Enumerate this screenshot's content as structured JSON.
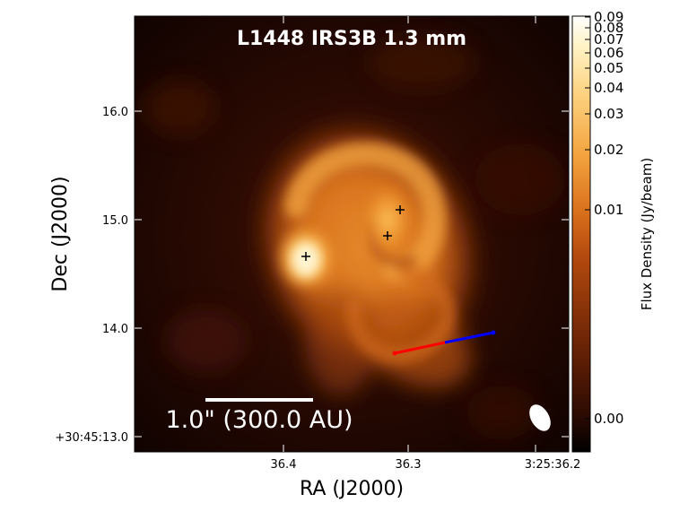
{
  "title": "L1448 IRS3B 1.3 mm",
  "xlabel": "RA (J2000)",
  "ylabel": "Dec (J2000)",
  "x_ticks": [
    "36.4",
    "36.3",
    "3:25:36.2"
  ],
  "y_ticks": [
    "+30:45:13.0",
    "14.0",
    "15.0",
    "16.0"
  ],
  "colorbar": {
    "label": "Flux Density (Jy/beam)",
    "ticks": [
      "0.09",
      "0.08",
      "0.07",
      "0.06",
      "0.05",
      "0.04",
      "0.03",
      "0.02",
      "0.01",
      "0.00"
    ],
    "colors": [
      "#000000",
      "#3a0f03",
      "#7a2a06",
      "#b84e10",
      "#e07d22",
      "#f6ae4a",
      "#ffd88a",
      "#fffbe8"
    ]
  },
  "scalebar": {
    "label": "1.0\" (300.0 AU)"
  },
  "sources": 3,
  "colors": {
    "outflow_red": "#ff0000",
    "outflow_blue": "#0000ff",
    "beam": "#ffffff",
    "marker": "#000000"
  }
}
